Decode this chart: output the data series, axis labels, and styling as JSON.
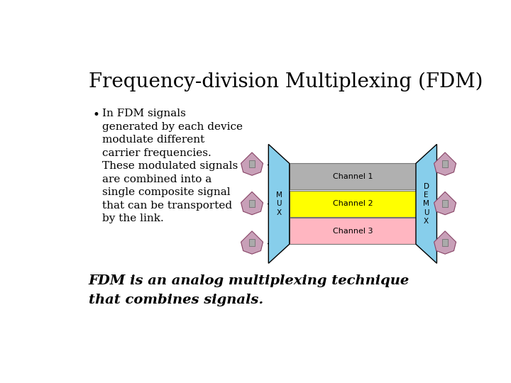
{
  "bg_color": "#ffffff",
  "title": "Frequency-division Multiplexing (FDM)",
  "title_fontsize": 20,
  "bullet_text_lines": [
    "In FDM signals",
    "generated by each device",
    "modulate different",
    "carrier frequencies.",
    "These modulated signals",
    "are combined into a",
    "single composite signal",
    "that can be transported",
    "by the link."
  ],
  "bullet_fontsize": 11,
  "footer_line1": "FDM is an analog multiplexing technique",
  "footer_line2": "that combines signals.",
  "footer_fontsize": 14,
  "mux_color": "#87ceeb",
  "demux_color": "#87ceeb",
  "ch1_color": "#b0b0b0",
  "ch2_color": "#ffff00",
  "ch3_color": "#ffb6c1",
  "ch1_label": "Channel 1",
  "ch2_label": "Channel 2",
  "ch3_label": "Channel 3",
  "mux_label": "M\nU\nX",
  "demux_label": "D\nE\nM\nU\nX",
  "line_color": "#000000"
}
